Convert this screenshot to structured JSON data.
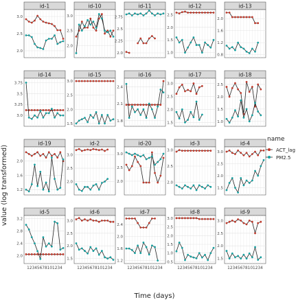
{
  "chart_data": {
    "type": "line",
    "xlabel": "Time (days)",
    "ylabel": "value (log transformed)",
    "legend": {
      "title": "name",
      "placement": "right",
      "entries": [
        {
          "name": "ACT_lag",
          "color": "#c0392b"
        },
        {
          "name": "PM2.5",
          "color": "#16a0a0"
        }
      ]
    },
    "x_tick_label": "12345678101234",
    "x": [
      1,
      2,
      3,
      4,
      5,
      6,
      7,
      8,
      9,
      10,
      11,
      12,
      13,
      14
    ],
    "grid": true,
    "facets": [
      {
        "id": "id-1",
        "yticks": [
          2.0,
          2.5,
          3.0
        ],
        "ylim": [
          1.8,
          3.2
        ],
        "act": [
          2.92,
          2.85,
          2.82,
          2.88,
          3.02,
          2.92,
          2.85,
          2.82,
          2.8,
          2.78,
          2.72,
          2.6,
          2.6,
          2.35
        ],
        "pm": [
          2.45,
          2.45,
          2.4,
          2.2,
          2.1,
          2.08,
          2.05,
          2.3,
          2.35,
          2.35,
          2.45,
          2.2,
          2.25,
          2.28
        ]
      },
      {
        "id": "id-10",
        "yticks": [
          2.0,
          2.5,
          3.0
        ],
        "ylim": [
          1.6,
          3.2
        ],
        "act": [
          2.3,
          2.5,
          2.8,
          2.6,
          2.6,
          2.9,
          2.6,
          2.5,
          2.9,
          3.05,
          2.4,
          2.5,
          2.3,
          2.5
        ],
        "pm": [
          1.75,
          2.7,
          2.5,
          2.65,
          2.85,
          2.7,
          2.8,
          2.6,
          3.05,
          2.9,
          2.5,
          2.45,
          2.5,
          2.3
        ]
      },
      {
        "id": "id-11",
        "yticks": [
          2.0,
          2.25,
          2.5,
          2.75
        ],
        "ylim": [
          1.9,
          2.9
        ],
        "act": [
          2.02,
          2.0,
          null,
          null,
          2.2,
          2.3,
          2.2,
          2.2,
          2.3,
          2.35,
          2.3,
          null,
          null,
          null
        ],
        "pm": [
          2.8,
          2.82,
          2.78,
          2.82,
          2.8,
          2.82,
          2.78,
          2.82,
          2.88,
          2.82,
          2.78,
          2.82,
          2.8,
          2.82
        ]
      },
      {
        "id": "id-12",
        "yticks": [
          1.0,
          1.5,
          2.0,
          2.5
        ],
        "ylim": [
          0.8,
          2.7
        ],
        "act": [
          2.58,
          2.55,
          2.6,
          2.62,
          2.58,
          2.58,
          2.58,
          2.58,
          2.58,
          2.58,
          2.58,
          2.58,
          2.58,
          2.58
        ],
        "pm": [
          1.6,
          1.4,
          1.5,
          1.0,
          1.2,
          1.4,
          1.6,
          1.3,
          1.3,
          1.0,
          1.4,
          1.3,
          1.2,
          1.5
        ]
      },
      {
        "id": "id-13",
        "yticks": [
          0.8,
          1.2,
          1.6,
          2.0
        ],
        "ylim": [
          0.7,
          2.3
        ],
        "act": [
          2.2,
          2.2,
          2.05,
          2.05,
          2.05,
          2.05,
          2.05,
          2.05,
          2.05,
          2.05,
          1.85,
          1.85,
          null,
          null
        ],
        "pm": [
          1.1,
          1.0,
          1.05,
          0.95,
          1.2,
          1.05,
          1.0,
          0.9,
          0.85,
          1.0,
          0.9,
          1.2,
          null,
          null
        ]
      },
      {
        "id": "id-14",
        "yticks": [
          3.0,
          3.25,
          3.5,
          3.75
        ],
        "ylim": [
          2.75,
          3.85
        ],
        "act": [
          3.12,
          3.12,
          3.12,
          3.12,
          3.12,
          3.12,
          3.12,
          3.12,
          3.12,
          3.12,
          3.12,
          3.12,
          3.12,
          3.12
        ],
        "pm": [
          3.75,
          2.95,
          2.92,
          3.0,
          2.95,
          3.1,
          2.95,
          3.05,
          3.05,
          3.15,
          2.95,
          3.05,
          3.0,
          3.0
        ]
      },
      {
        "id": "id-15",
        "yticks": [
          1.5,
          2.0,
          2.5,
          3.0
        ],
        "ylim": [
          1.4,
          3.1
        ],
        "act": [
          3.0,
          3.0,
          3.0,
          3.0,
          3.0,
          3.0,
          3.0,
          3.0,
          3.0,
          3.0,
          3.0,
          3.0,
          3.0,
          3.0
        ],
        "pm": [
          1.5,
          1.6,
          1.65,
          1.7,
          1.55,
          1.8,
          1.7,
          1.9,
          1.5,
          1.8,
          1.5,
          1.8,
          1.6,
          1.65
        ]
      },
      {
        "id": "id-16",
        "yticks": [
          1.8,
          2.1,
          2.4
        ],
        "ylim": [
          1.7,
          2.55
        ],
        "act": [
          2.08,
          2.08,
          2.08,
          2.08,
          2.08,
          2.08,
          2.08,
          2.08,
          2.08,
          2.08,
          2.08,
          2.08,
          2.08,
          2.5
        ],
        "pm": [
          2.45,
          1.85,
          2.05,
          1.95,
          2.0,
          1.9,
          2.0,
          1.85,
          2.1,
          2.0,
          1.85,
          2.05,
          2.35,
          2.3
        ]
      },
      {
        "id": "id-17",
        "yticks": [
          1.5,
          2.0,
          2.5,
          3.0
        ],
        "ylim": [
          1.35,
          3.2
        ],
        "act": [
          2.6,
          2.85,
          2.95,
          2.7,
          2.75,
          2.7,
          3.0,
          2.6,
          2.85,
          2.9,
          null,
          null,
          null,
          null
        ],
        "pm": [
          1.9,
          1.65,
          2.0,
          1.5,
          1.6,
          1.9,
          1.7,
          2.3,
          1.6,
          1.8,
          null,
          null,
          null,
          null
        ]
      },
      {
        "id": "id-18",
        "yticks": [
          1.0,
          1.5,
          2.0,
          2.5
        ],
        "ylim": [
          0.8,
          2.75
        ],
        "act": [
          2.4,
          2.0,
          2.35,
          2.55,
          2.3,
          2.15,
          1.3,
          2.6,
          2.2,
          2.4,
          1.6,
          2.5,
          2.3,
          null
        ],
        "pm": [
          1.1,
          0.95,
          1.15,
          1.45,
          1.2,
          1.85,
          1.15,
          1.5,
          1.0,
          1.25,
          1.75,
          1.4,
          1.25,
          null
        ]
      },
      {
        "id": "id-19",
        "yticks": [
          1.2,
          1.6,
          2.0
        ],
        "ylim": [
          1.05,
          2.4
        ],
        "act": [
          2.25,
          2.2,
          2.15,
          2.2,
          2.25,
          2.15,
          2.2,
          2.1,
          2.25,
          2.15,
          2.2,
          2.1,
          2.25,
          2.0
        ],
        "pm": [
          1.2,
          1.15,
          1.35,
          1.9,
          1.3,
          1.7,
          1.2,
          1.4,
          1.15,
          2.1,
          1.5,
          1.2,
          1.25,
          2.05
        ]
      },
      {
        "id": "id-2",
        "yticks": [
          2.0,
          2.5,
          3.0
        ],
        "ylim": [
          1.5,
          3.3
        ],
        "act": [
          3.18,
          3.22,
          3.15,
          3.18,
          3.2,
          3.18,
          3.22,
          3.2,
          3.18,
          3.2,
          3.15,
          3.2,
          null,
          null
        ],
        "pm": [
          1.9,
          1.7,
          1.65,
          1.8,
          1.8,
          1.7,
          1.85,
          1.9,
          1.7,
          1.95,
          2.0,
          2.1,
          null,
          null
        ]
      },
      {
        "id": "id-20",
        "yticks": [
          2.0,
          2.5,
          3.0
        ],
        "ylim": [
          1.5,
          3.25
        ],
        "act": [
          2.6,
          2.4,
          2.55,
          2.9,
          2.7,
          2.55,
          1.95,
          1.95,
          1.95,
          3.05,
          2.3,
          1.95,
          2.2,
          2.85
        ],
        "pm": [
          3.05,
          3.0,
          2.95,
          3.0,
          2.95,
          2.9,
          2.95,
          2.8,
          2.85,
          2.9,
          2.6,
          2.7,
          2.8,
          3.0
        ]
      },
      {
        "id": "id-3",
        "yticks": [
          2.0,
          2.5,
          3.0
        ],
        "ylim": [
          1.6,
          3.1
        ],
        "act": [
          2.95,
          3.0,
          2.98,
          2.98,
          2.98,
          2.98,
          2.98,
          2.98,
          2.98,
          2.98,
          2.98,
          2.98,
          2.98,
          null
        ],
        "pm": [
          1.9,
          1.85,
          1.8,
          1.9,
          1.85,
          1.8,
          1.9,
          1.75,
          1.9,
          1.85,
          1.8,
          1.9,
          1.85,
          null
        ]
      },
      {
        "id": "id-4",
        "yticks": [
          1.5,
          2.0,
          2.5,
          3.0
        ],
        "ylim": [
          1.2,
          3.2
        ],
        "act": [
          3.0,
          3.05,
          2.95,
          2.9,
          3.05,
          2.95,
          2.85,
          2.95,
          2.8,
          2.9,
          3.0,
          2.85,
          3.05,
          3.05
        ],
        "pm": [
          1.4,
          1.7,
          1.9,
          1.5,
          1.3,
          1.9,
          1.6,
          1.8,
          1.7,
          1.8,
          2.2,
          2.0,
          2.4,
          2.65
        ]
      },
      {
        "id": "id-5",
        "yticks": [
          2.0,
          2.4,
          2.8,
          3.2
        ],
        "ylim": [
          1.75,
          3.3
        ],
        "act": [
          2.05,
          2.05,
          2.05,
          2.05,
          2.05,
          2.05,
          2.05,
          2.05,
          2.05,
          2.05,
          2.05,
          2.05,
          2.05,
          2.05
        ],
        "pm": [
          3.0,
          2.85,
          2.6,
          2.4,
          2.15,
          1.9,
          2.6,
          2.3,
          2.4,
          2.3,
          3.1,
          3.05,
          2.2,
          2.25
        ]
      },
      {
        "id": "id-6",
        "yticks": [
          1.5,
          2.0,
          2.5,
          3.0
        ],
        "ylim": [
          1.3,
          3.2
        ],
        "act": [
          3.05,
          3.1,
          3.0,
          3.05,
          3.0,
          3.05,
          3.0,
          3.0,
          2.95,
          3.0,
          3.0,
          3.0,
          2.95,
          2.95
        ],
        "pm": [
          2.1,
          1.85,
          1.9,
          1.8,
          1.7,
          1.95,
          1.8,
          1.9,
          1.65,
          1.8,
          1.55,
          1.5,
          1.55,
          1.45
        ]
      },
      {
        "id": "id-7",
        "yticks": [
          1.2,
          1.6,
          2.0,
          2.4
        ],
        "ylim": [
          1.1,
          2.7
        ],
        "act": [
          2.6,
          2.6,
          2.6,
          2.6,
          2.45,
          2.3,
          2.3,
          2.3,
          2.45,
          2.6,
          2.6,
          null,
          null,
          null
        ],
        "pm": [
          1.6,
          1.6,
          1.55,
          1.45,
          1.7,
          1.45,
          1.8,
          1.65,
          1.4,
          1.7,
          1.65,
          1.2,
          null,
          null
        ]
      },
      {
        "id": "id-8",
        "yticks": [
          0.5,
          1.0,
          1.5,
          2.0,
          2.5,
          3.0
        ],
        "ylim": [
          0.4,
          3.15
        ],
        "act": [
          3.0,
          3.0,
          3.0,
          3.0,
          3.0,
          3.0,
          3.0,
          3.0,
          2.95,
          2.95,
          2.95,
          2.95,
          2.95,
          2.95
        ],
        "pm": [
          1.1,
          1.6,
          1.3,
          0.6,
          0.9,
          0.8,
          0.75,
          0.7,
          1.0,
          0.75,
          0.9,
          0.6,
          1.0,
          1.3
        ]
      },
      {
        "id": "id-9",
        "yticks": [
          1.5,
          2.0,
          2.5,
          3.0
        ],
        "ylim": [
          1.3,
          3.2
        ],
        "act": [
          2.9,
          2.95,
          3.0,
          2.95,
          3.05,
          3.0,
          2.9,
          2.85,
          3.0,
          2.95,
          2.5,
          2.9,
          2.95,
          null
        ],
        "pm": [
          1.8,
          1.5,
          1.7,
          1.55,
          1.6,
          1.5,
          1.65,
          1.5,
          1.7,
          1.55,
          1.95,
          1.45,
          1.55,
          null
        ]
      }
    ]
  }
}
